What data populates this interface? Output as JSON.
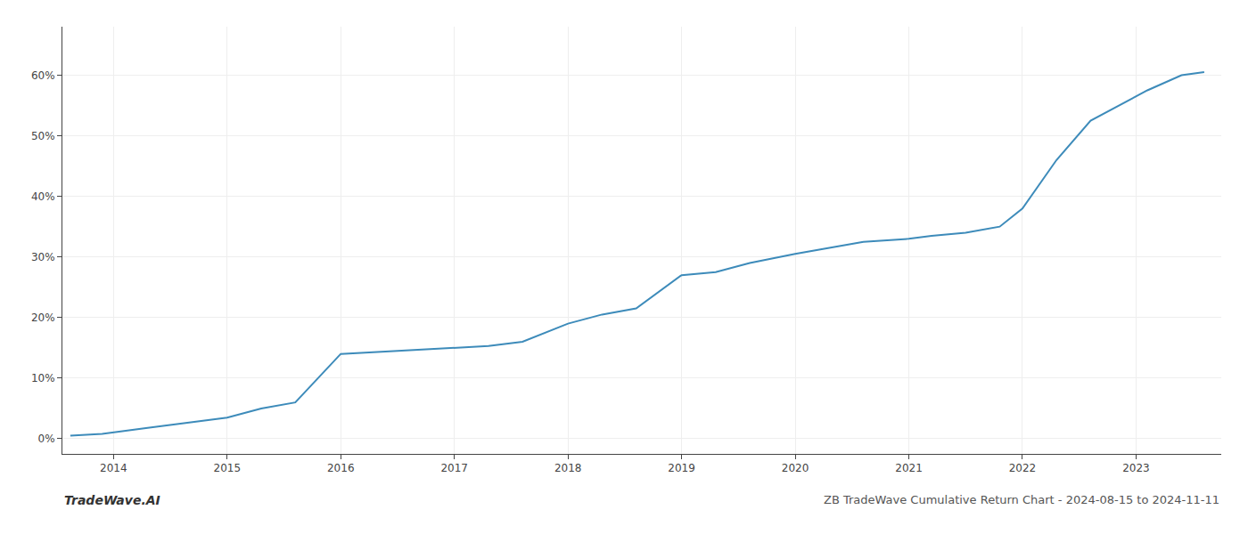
{
  "chart_data": {
    "type": "line",
    "title": "ZB TradeWave Cumulative Return Chart - 2024-08-15 to 2024-11-11",
    "annotations": [
      "TradeWave.AI"
    ],
    "x": [
      2013.62,
      2013.9,
      2014.3,
      2014.7,
      2015.0,
      2015.3,
      2015.6,
      2016.0,
      2016.3,
      2016.6,
      2017.0,
      2017.3,
      2017.6,
      2018.0,
      2018.3,
      2018.6,
      2019.0,
      2019.3,
      2019.6,
      2020.0,
      2020.3,
      2020.6,
      2021.0,
      2021.2,
      2021.5,
      2021.8,
      2022.0,
      2022.3,
      2022.6,
      2022.9,
      2023.1,
      2023.4,
      2023.6
    ],
    "values": [
      0.005,
      0.008,
      0.018,
      0.028,
      0.035,
      0.05,
      0.06,
      0.14,
      0.143,
      0.145,
      0.15,
      0.153,
      0.16,
      0.19,
      0.205,
      0.215,
      0.27,
      0.275,
      0.29,
      0.305,
      0.315,
      0.325,
      0.33,
      0.335,
      0.34,
      0.35,
      0.38,
      0.46,
      0.525,
      0.555,
      0.575,
      0.6,
      0.605
    ],
    "color": "#3d8bba",
    "xlim": [
      2013.55,
      2023.75
    ],
    "xticks": [
      2014,
      2015,
      2016,
      2017,
      2018,
      2019,
      2020,
      2021,
      2022,
      2023
    ],
    "ylim": [
      -0.025,
      0.68
    ],
    "yticks": [
      {
        "value": 0,
        "label": "0%"
      },
      {
        "value": 0.1,
        "label": "10%"
      },
      {
        "value": 0.2,
        "label": "20%"
      },
      {
        "value": 0.3,
        "label": "30%"
      },
      {
        "value": 0.4,
        "label": "40%"
      },
      {
        "value": 0.5,
        "label": "50%"
      },
      {
        "value": 0.6,
        "label": "60%"
      }
    ],
    "grid": true
  }
}
